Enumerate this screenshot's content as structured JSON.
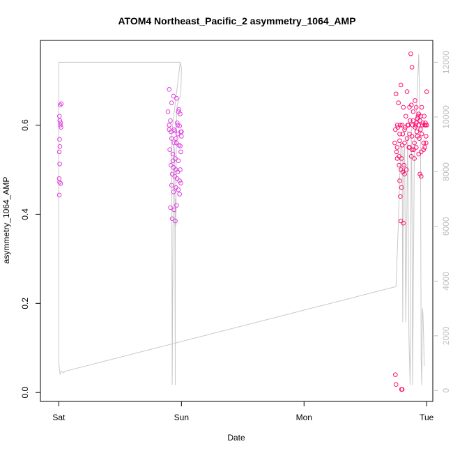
{
  "chart_data": {
    "type": "scatter",
    "title": "ATOM4 Northeast_Pacific_2 asymmetry_1064_AMP",
    "xlabel": "Date",
    "ylabel": "asymmetry_1064_AMP",
    "x_ticks": [
      {
        "x": 0,
        "label": "Sat"
      },
      {
        "x": 1,
        "label": "Sun"
      },
      {
        "x": 2,
        "label": "Mon"
      },
      {
        "x": 3,
        "label": "Tue"
      }
    ],
    "y_ticks": [
      0.0,
      0.2,
      0.4,
      0.6
    ],
    "y_tick_labels": [
      "0.0",
      "0.2",
      "0.4",
      "0.6"
    ],
    "y2_ticks": [
      0,
      2000,
      4000,
      6000,
      8000,
      10000,
      12000
    ],
    "y2_tick_labels": [
      "0",
      "2000",
      "4000",
      "6000",
      "8000",
      "10000",
      "12000"
    ],
    "xlim": [
      -0.15,
      3.05
    ],
    "ylim": [
      -0.02,
      0.79
    ],
    "y2lim": [
      -400,
      12800
    ],
    "grid": false,
    "colors": {
      "points_early": "#e040e0",
      "points_late": "#ff1070",
      "secondary_line": "#c8c8c8",
      "right_axis": "#bebebe"
    },
    "series": [
      {
        "type": "scatter",
        "points": [
          [
            0.005,
            0.62
          ],
          [
            0.01,
            0.645
          ],
          [
            0.02,
            0.648
          ],
          [
            0.008,
            0.61
          ],
          [
            0.012,
            0.6
          ],
          [
            0.018,
            0.595
          ],
          [
            0.015,
            0.605
          ],
          [
            0.006,
            0.568
          ],
          [
            0.009,
            0.552
          ],
          [
            0.004,
            0.54
          ],
          [
            0.007,
            0.513
          ],
          [
            0.003,
            0.48
          ],
          [
            0.006,
            0.472
          ],
          [
            0.015,
            0.469
          ],
          [
            0.004,
            0.443
          ],
          [
            0.9,
            0.68
          ],
          [
            0.92,
            0.65
          ],
          [
            0.89,
            0.63
          ],
          [
            0.91,
            0.61
          ],
          [
            0.935,
            0.665
          ],
          [
            0.96,
            0.66
          ],
          [
            0.975,
            0.63
          ],
          [
            0.99,
            0.625
          ],
          [
            0.965,
            0.605
          ],
          [
            0.985,
            0.598
          ],
          [
            0.9,
            0.59
          ],
          [
            0.915,
            0.585
          ],
          [
            0.945,
            0.587
          ],
          [
            0.97,
            0.58
          ],
          [
            0.995,
            0.585
          ],
          [
            1.0,
            0.575
          ],
          [
            0.92,
            0.57
          ],
          [
            0.94,
            0.56
          ],
          [
            0.96,
            0.56
          ],
          [
            0.98,
            0.555
          ],
          [
            0.99,
            0.553
          ],
          [
            0.905,
            0.545
          ],
          [
            0.93,
            0.535
          ],
          [
            0.95,
            0.525
          ],
          [
            0.975,
            0.52
          ],
          [
            0.995,
            0.54
          ],
          [
            0.915,
            0.51
          ],
          [
            0.935,
            0.505
          ],
          [
            0.955,
            0.5
          ],
          [
            0.97,
            0.495
          ],
          [
            0.925,
            0.49
          ],
          [
            0.945,
            0.485
          ],
          [
            0.965,
            0.48
          ],
          [
            0.985,
            0.475
          ],
          [
            0.995,
            0.47
          ],
          [
            0.92,
            0.465
          ],
          [
            0.955,
            0.46
          ],
          [
            0.975,
            0.455
          ],
          [
            0.935,
            0.45
          ],
          [
            0.985,
            0.445
          ],
          [
            0.91,
            0.415
          ],
          [
            0.94,
            0.41
          ],
          [
            0.96,
            0.42
          ],
          [
            0.925,
            0.39
          ],
          [
            0.95,
            0.385
          ],
          [
            0.98,
            0.635
          ],
          [
            0.9,
            0.6
          ],
          [
            0.94,
            0.59
          ],
          [
            0.97,
            0.6
          ],
          [
            0.955,
            0.57
          ],
          [
            1.0,
            0.585
          ],
          [
            0.99,
            0.5
          ],
          [
            0.93,
            0.52
          ]
        ]
      },
      {
        "type": "scatter",
        "points": [
          [
            2.75,
            0.67
          ],
          [
            2.77,
            0.65
          ],
          [
            2.79,
            0.69
          ],
          [
            2.81,
            0.64
          ],
          [
            2.84,
            0.675
          ],
          [
            2.87,
            0.76
          ],
          [
            2.88,
            0.73
          ],
          [
            2.86,
            0.64
          ],
          [
            2.83,
            0.62
          ],
          [
            2.8,
            0.6
          ],
          [
            2.76,
            0.6
          ],
          [
            2.78,
            0.58
          ],
          [
            2.82,
            0.59
          ],
          [
            2.85,
            0.6
          ],
          [
            2.89,
            0.61
          ],
          [
            2.91,
            0.6
          ],
          [
            2.93,
            0.62
          ],
          [
            2.95,
            0.59
          ],
          [
            2.97,
            0.605
          ],
          [
            2.99,
            0.6
          ],
          [
            3.0,
            0.6
          ],
          [
            2.98,
            0.62
          ],
          [
            2.96,
            0.58
          ],
          [
            2.94,
            0.57
          ],
          [
            2.92,
            0.585
          ],
          [
            2.9,
            0.56
          ],
          [
            2.88,
            0.575
          ],
          [
            2.86,
            0.58
          ],
          [
            2.84,
            0.57
          ],
          [
            2.82,
            0.56
          ],
          [
            2.8,
            0.555
          ],
          [
            2.78,
            0.565
          ],
          [
            2.76,
            0.55
          ],
          [
            2.74,
            0.56
          ],
          [
            2.755,
            0.54
          ],
          [
            2.775,
            0.53
          ],
          [
            2.795,
            0.525
          ],
          [
            2.815,
            0.51
          ],
          [
            2.835,
            0.5
          ],
          [
            2.855,
            0.55
          ],
          [
            2.875,
            0.53
          ],
          [
            2.895,
            0.545
          ],
          [
            2.915,
            0.55
          ],
          [
            2.935,
            0.535
          ],
          [
            2.955,
            0.54
          ],
          [
            2.975,
            0.56
          ],
          [
            2.995,
            0.575
          ],
          [
            2.965,
            0.6
          ],
          [
            2.945,
            0.61
          ],
          [
            2.925,
            0.615
          ],
          [
            2.905,
            0.595
          ],
          [
            2.885,
            0.6
          ],
          [
            2.865,
            0.61
          ],
          [
            2.845,
            0.6
          ],
          [
            2.825,
            0.595
          ],
          [
            2.805,
            0.58
          ],
          [
            2.785,
            0.6
          ],
          [
            2.765,
            0.595
          ],
          [
            2.745,
            0.59
          ],
          [
            2.76,
            0.525
          ],
          [
            2.775,
            0.51
          ],
          [
            2.79,
            0.5
          ],
          [
            2.805,
            0.495
          ],
          [
            2.82,
            0.49
          ],
          [
            2.78,
            0.475
          ],
          [
            2.795,
            0.46
          ],
          [
            2.785,
            0.44
          ],
          [
            2.79,
            0.385
          ],
          [
            2.81,
            0.38
          ],
          [
            2.86,
            0.55
          ],
          [
            2.88,
            0.545
          ],
          [
            2.9,
            0.525
          ],
          [
            2.945,
            0.49
          ],
          [
            2.955,
            0.485
          ],
          [
            2.975,
            0.545
          ],
          [
            2.985,
            0.55
          ],
          [
            2.995,
            0.56
          ],
          [
            2.96,
            0.64
          ],
          [
            2.95,
            0.62
          ],
          [
            2.875,
            0.645
          ],
          [
            2.89,
            0.63
          ],
          [
            2.905,
            0.655
          ],
          [
            2.915,
            0.64
          ],
          [
            2.935,
            0.625
          ],
          [
            2.99,
            0.605
          ],
          [
            3.0,
            0.675
          ],
          [
            2.985,
            0.6
          ],
          [
            2.935,
            0.6
          ],
          [
            2.915,
            0.605
          ],
          [
            2.925,
            0.575
          ],
          [
            2.745,
            0.04
          ],
          [
            2.75,
            0.018
          ],
          [
            2.795,
            0.007
          ],
          [
            2.8,
            0.007
          ]
        ]
      },
      {
        "type": "line",
        "axis": "right",
        "points": [
          [
            0.0,
            12000
          ],
          [
            0.0,
            12000
          ],
          [
            0.99,
            12000
          ],
          [
            1.0,
            11800
          ],
          [
            0.995,
            10800
          ],
          [
            0.975,
            10600
          ],
          [
            0.965,
            10400
          ],
          [
            0.96,
            10200
          ],
          [
            0.955,
            6000
          ],
          [
            0.95,
            7000
          ],
          [
            0.95,
            200
          ],
          [
            0.945,
            8800
          ],
          [
            0.935,
            9000
          ],
          [
            0.925,
            200
          ],
          [
            0.92,
            9400
          ],
          [
            0.99,
            12000
          ],
          [
            0.0,
            12000
          ],
          [
            0.0,
            1000
          ],
          [
            0.01,
            600
          ],
          [
            0.02,
            700
          ],
          [
            0.04,
            650
          ],
          [
            0.05,
            700
          ],
          [
            2.75,
            3800
          ],
          [
            2.77,
            6200
          ],
          [
            2.78,
            7800
          ],
          [
            2.79,
            9000
          ],
          [
            2.8,
            8800
          ],
          [
            2.805,
            2500
          ],
          [
            2.81,
            8500
          ],
          [
            2.82,
            9000
          ],
          [
            2.83,
            2500
          ],
          [
            2.845,
            9500
          ],
          [
            2.855,
            2000
          ],
          [
            2.865,
            200
          ],
          [
            2.875,
            9600
          ],
          [
            2.88,
            7500
          ],
          [
            2.885,
            200
          ],
          [
            2.9,
            9000
          ],
          [
            2.92,
            10500
          ],
          [
            2.935,
            12300
          ],
          [
            2.95,
            8800
          ],
          [
            2.955,
            1100
          ],
          [
            2.96,
            200
          ],
          [
            2.965,
            3000
          ],
          [
            2.97,
            2800
          ],
          [
            2.975,
            2000
          ],
          [
            2.98,
            900
          ]
        ]
      }
    ]
  }
}
